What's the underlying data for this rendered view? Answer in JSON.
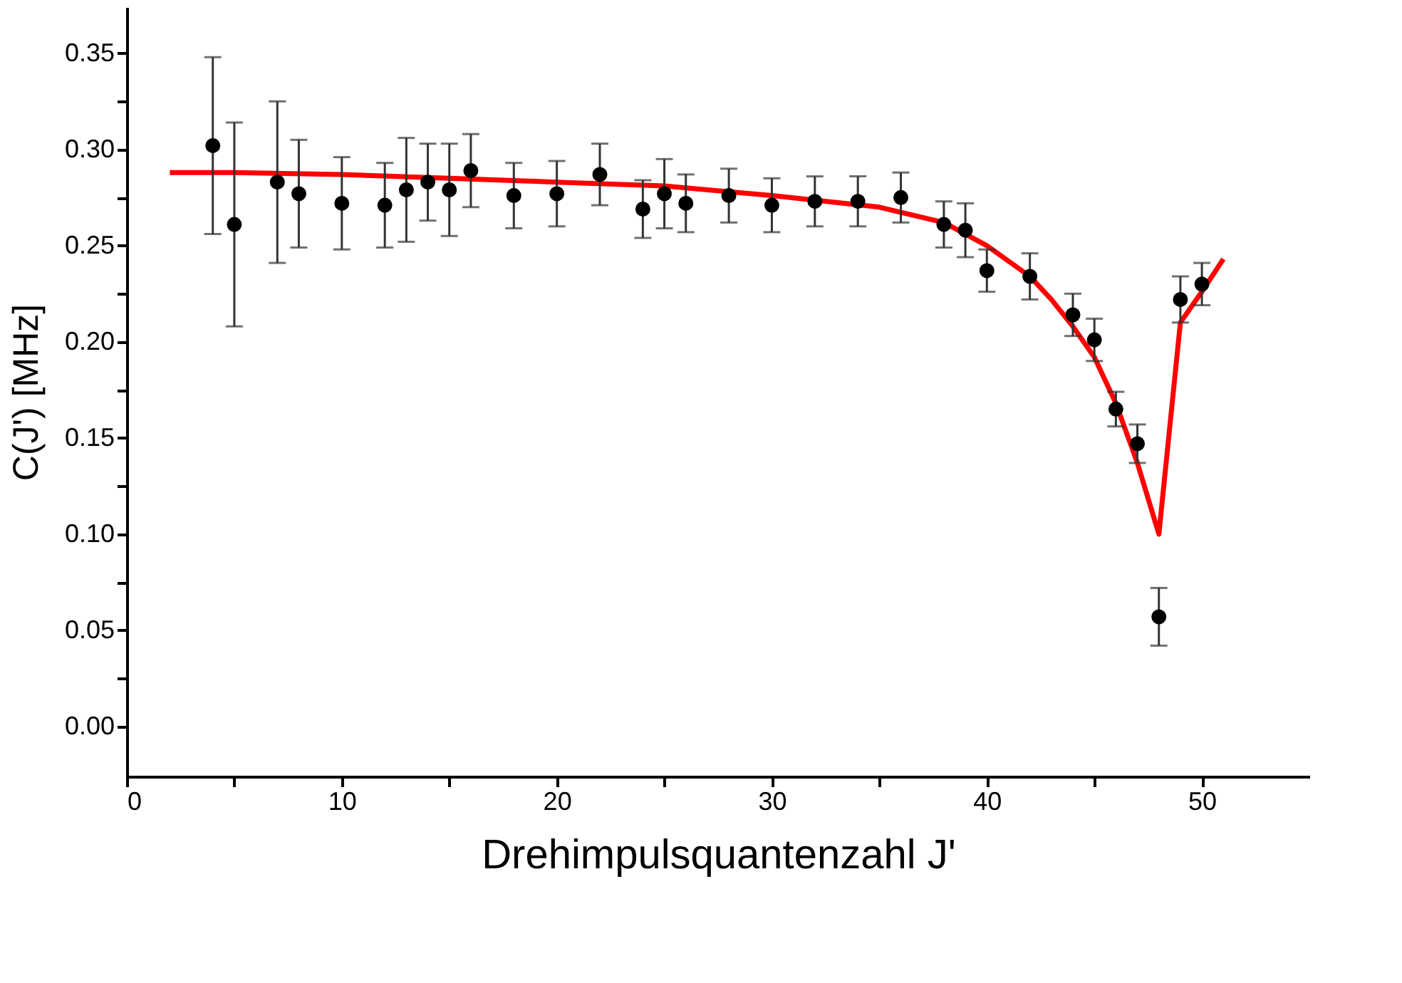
{
  "chart_data": {
    "type": "scatter",
    "xlabel": "Drehimpulsquantenzahl J'",
    "ylabel": "C(J') [MHz]",
    "xlim": [
      0,
      55
    ],
    "ylim": [
      -0.026,
      0.374
    ],
    "xticks": [
      0,
      {
        "value": 5,
        "label": null
      },
      10,
      {
        "value": 15,
        "label": null
      },
      20,
      {
        "value": 25,
        "label": null
      },
      30,
      {
        "value": 35,
        "label": null
      },
      40,
      {
        "value": 45,
        "label": null
      },
      50
    ],
    "yticks": [
      {
        "value": 0,
        "label": "0.00"
      },
      {
        "value": 0.025,
        "label": null
      },
      {
        "value": 0.05,
        "label": "0.05"
      },
      {
        "value": 0.075,
        "label": null
      },
      {
        "value": 0.1,
        "label": "0.10"
      },
      {
        "value": 0.125,
        "label": null
      },
      {
        "value": 0.15,
        "label": "0.15"
      },
      {
        "value": 0.175,
        "label": null
      },
      {
        "value": 0.2,
        "label": "0.20"
      },
      {
        "value": 0.225,
        "label": null
      },
      {
        "value": 0.25,
        "label": "0.25"
      },
      {
        "value": 0.275,
        "label": null
      },
      {
        "value": 0.3,
        "label": "0.30"
      },
      {
        "value": 0.325,
        "label": null
      },
      {
        "value": 0.35,
        "label": "0.35"
      }
    ],
    "grid": false,
    "legend": false,
    "series": [
      {
        "type": "line",
        "color": "#ff0000",
        "marker": "none",
        "line_style": "solid",
        "x": [
          2,
          5,
          10,
          15,
          20,
          25,
          30,
          35,
          38,
          40,
          42,
          43,
          44,
          45,
          46,
          47,
          48,
          49,
          50,
          51
        ],
        "values": [
          0.288,
          0.288,
          0.287,
          0.285,
          0.283,
          0.281,
          0.276,
          0.27,
          0.262,
          0.25,
          0.234,
          0.222,
          0.208,
          0.192,
          0.168,
          0.137,
          0.1,
          0.21,
          0.226,
          0.243
        ]
      },
      {
        "color": "#000000",
        "marker": "circle",
        "x": [
          4,
          5,
          7,
          8,
          10,
          12,
          13,
          14,
          15,
          16,
          18,
          20,
          22,
          24,
          25,
          26,
          28,
          30,
          32,
          34,
          36,
          38,
          39,
          40,
          42,
          44,
          45,
          46,
          47,
          48,
          49,
          50
        ],
        "values": [
          0.302,
          0.261,
          0.283,
          0.277,
          0.272,
          0.271,
          0.279,
          0.283,
          0.279,
          0.289,
          0.276,
          0.277,
          0.287,
          0.269,
          0.277,
          0.272,
          0.276,
          0.271,
          0.273,
          0.273,
          0.275,
          0.261,
          0.258,
          0.237,
          0.234,
          0.214,
          0.201,
          0.165,
          0.147,
          0.057,
          0.222,
          0.23
        ],
        "errors": [
          0.046,
          0.053,
          0.042,
          0.028,
          0.024,
          0.022,
          0.027,
          0.02,
          0.024,
          0.019,
          0.017,
          0.017,
          0.016,
          0.015,
          0.018,
          0.015,
          0.014,
          0.014,
          0.013,
          0.013,
          0.013,
          0.012,
          0.014,
          0.011,
          0.012,
          0.011,
          0.011,
          0.009,
          0.01,
          0.015,
          0.012,
          0.011
        ]
      }
    ]
  }
}
